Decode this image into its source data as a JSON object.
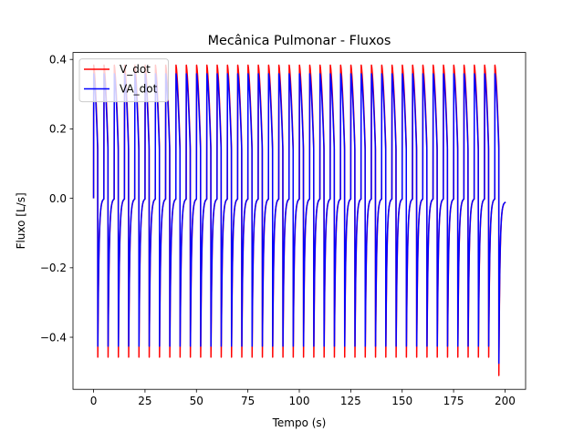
{
  "chart_data": {
    "type": "line",
    "title": "Mecânica Pulmonar - Fluxos",
    "xlabel": "Tempo (s)",
    "ylabel": "Fluxo [L/s]",
    "xlim": [
      -10,
      210
    ],
    "ylim": [
      -0.55,
      0.42
    ],
    "xticks": [
      0,
      25,
      50,
      75,
      100,
      125,
      150,
      175,
      200
    ],
    "xtick_labels": [
      "0",
      "25",
      "50",
      "75",
      "100",
      "125",
      "150",
      "175",
      "200"
    ],
    "yticks": [
      -0.4,
      -0.2,
      0.0,
      0.2,
      0.4
    ],
    "ytick_labels": [
      "−0.4",
      "−0.2",
      "0.0",
      "0.2",
      "0.4"
    ],
    "grid": false,
    "legend_position": "top-left",
    "waveform": {
      "period_s": 5,
      "inspiration_s": 2,
      "end_time_s": 200,
      "cycles": 40
    },
    "series": [
      {
        "name": "V_dot",
        "color": "#ff0000",
        "peak_value": 0.385,
        "trough_value": -0.51,
        "insp_tail_value": 0.15,
        "end_value": -0.01
      },
      {
        "name": "VA_dot",
        "color": "#0000ff",
        "peak_value": 0.36,
        "trough_value": -0.475,
        "insp_tail_value": 0.14,
        "end_value": -0.01
      }
    ]
  }
}
